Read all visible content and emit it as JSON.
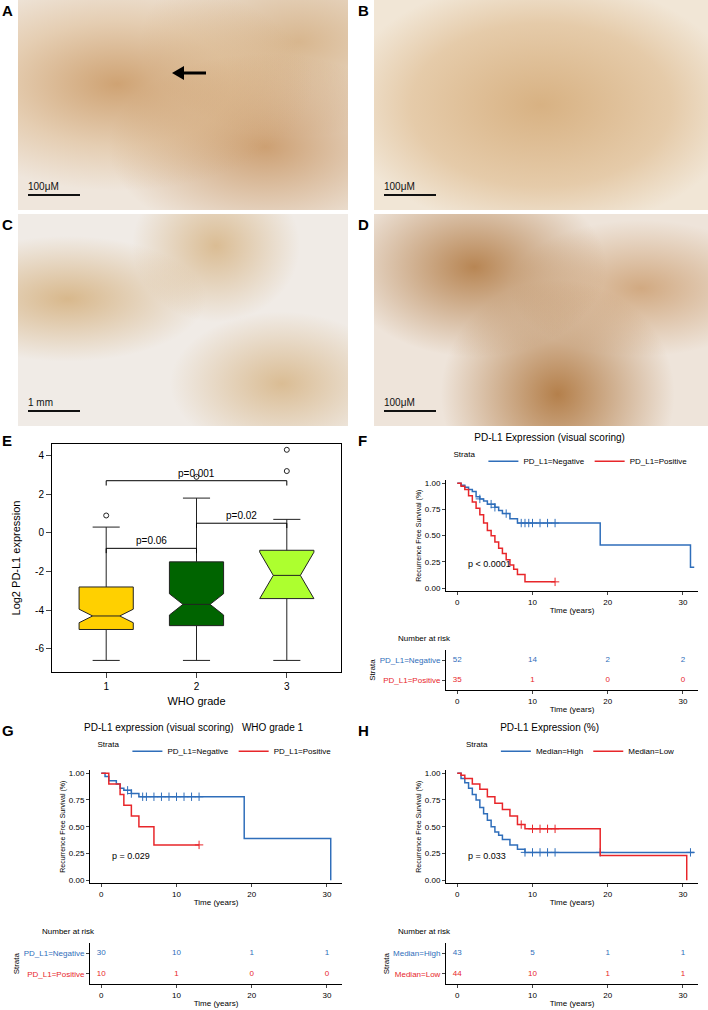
{
  "panels": [
    {
      "label": "A",
      "scale_bar": "100μM"
    },
    {
      "label": "B",
      "scale_bar": "100μM"
    },
    {
      "label": "C",
      "scale_bar": "1 mm"
    },
    {
      "label": "D",
      "scale_bar": "100μM"
    }
  ],
  "chart_data": [
    {
      "panel": "E",
      "type": "box",
      "xlabel": "WHO grade",
      "ylabel": "Log2 PD-L1 expression",
      "categories": [
        "1",
        "2",
        "3"
      ],
      "colors": [
        "#FFD000",
        "#006400",
        "#ADFF2F"
      ],
      "q1": [
        -5.0,
        -4.8,
        -3.4
      ],
      "median": [
        -4.3,
        -3.7,
        -2.2
      ],
      "q3": [
        -2.8,
        -1.5,
        -0.9
      ],
      "whisker_low": [
        -6.6,
        -6.6,
        -6.6
      ],
      "whisker_high": [
        0.3,
        1.8,
        0.7
      ],
      "notch_span": [
        0.35,
        0.55,
        1.2
      ],
      "outliers": [
        [
          0.9
        ],
        [
          2.9
        ],
        [
          3.2,
          4.3
        ]
      ],
      "ylim": [
        -7.2,
        4.6
      ],
      "yticks": [
        -6,
        -4,
        -2,
        0,
        2,
        4
      ],
      "grid": false,
      "comparisons": [
        {
          "from": "1",
          "to": "2",
          "y": -0.8,
          "label": "p=0.06"
        },
        {
          "from": "2",
          "to": "3",
          "y": 0.5,
          "label": "p=0.02"
        },
        {
          "from": "1",
          "to": "3",
          "y": 2.7,
          "label": "p=0.001"
        }
      ]
    },
    {
      "panel": "F",
      "type": "step",
      "title": "PD-L1 Expression (visual scoring)",
      "xlabel": "Time (years)",
      "ylabel": "Recurrence Free Survival (%)",
      "legend_title": "Strata",
      "legend": "top",
      "annotation": "p < 0.0001",
      "table_title": "Number at risk",
      "grid": false,
      "xlim": [
        -1.5,
        32
      ],
      "xticks": [
        0,
        10,
        20,
        30
      ],
      "ylim": [
        -0.03,
        1.03
      ],
      "yticks": [
        {
          "value": 0,
          "label": "0.00"
        },
        {
          "value": 0.25,
          "label": "0.25"
        },
        {
          "value": 0.5,
          "label": "0.50"
        },
        {
          "value": 0.75,
          "label": "0.75"
        },
        {
          "value": 1,
          "label": "1.00"
        }
      ],
      "risk_times": [
        0,
        10,
        20,
        30
      ],
      "series": [
        {
          "name": "PD_L1=Negative",
          "color": "#2F6EBA",
          "time": [
            0,
            0.5,
            1,
            1.5,
            2,
            2.5,
            3,
            3.5,
            4,
            5,
            5.5,
            6,
            7,
            8,
            19,
            31,
            31.5
          ],
          "values": [
            1,
            0.98,
            0.96,
            0.94,
            0.92,
            0.87,
            0.85,
            0.83,
            0.8,
            0.77,
            0.74,
            0.71,
            0.66,
            0.62,
            0.41,
            0.2,
            0.2
          ],
          "censored": [
            3,
            4.5,
            5,
            6.5,
            8.5,
            9,
            9.5,
            10,
            11,
            12,
            13
          ],
          "at_risk": [
            52,
            14,
            2,
            2
          ]
        },
        {
          "name": "PD_L1=Positive",
          "color": "#E8262A",
          "time": [
            0,
            0.5,
            1,
            1.5,
            2,
            2.5,
            3,
            3.5,
            4,
            4.5,
            5,
            5.5,
            6,
            6.5,
            7,
            7.5,
            8,
            9,
            13
          ],
          "values": [
            1,
            0.97,
            0.94,
            0.88,
            0.82,
            0.76,
            0.7,
            0.62,
            0.55,
            0.5,
            0.44,
            0.38,
            0.33,
            0.27,
            0.22,
            0.18,
            0.13,
            0.06,
            0.06
          ],
          "censored": [
            13
          ],
          "at_risk": [
            35,
            1,
            0,
            0
          ]
        }
      ]
    },
    {
      "panel": "G",
      "type": "step",
      "title": "PD-L1 expression (visual scoring)   WHO grade 1",
      "xlabel": "Time (years)",
      "ylabel": "Recurrence Free Survival (%)",
      "legend_title": "Strata",
      "legend": "top",
      "annotation": "p = 0.029",
      "table_title": "Number at risk",
      "grid": false,
      "xlim": [
        -1.5,
        32
      ],
      "xticks": [
        0,
        10,
        20,
        30
      ],
      "ylim": [
        -0.03,
        1.03
      ],
      "yticks": [
        {
          "value": 0,
          "label": "0.00"
        },
        {
          "value": 0.25,
          "label": "0.25"
        },
        {
          "value": 0.5,
          "label": "0.50"
        },
        {
          "value": 0.75,
          "label": "0.75"
        },
        {
          "value": 1,
          "label": "1.00"
        }
      ],
      "risk_times": [
        0,
        10,
        20,
        30
      ],
      "series": [
        {
          "name": "PD_L1=Negative",
          "color": "#2F6EBA",
          "time": [
            0,
            0.5,
            1,
            2,
            2.5,
            3,
            4,
            5,
            19,
            30.5
          ],
          "values": [
            1,
            0.97,
            0.93,
            0.9,
            0.86,
            0.84,
            0.81,
            0.78,
            0.39,
            0
          ],
          "censored": [
            3.5,
            4,
            5.5,
            6,
            7,
            8,
            9,
            10,
            11,
            12,
            13
          ],
          "at_risk": [
            30,
            10,
            1,
            1
          ]
        },
        {
          "name": "PD_L1=Positive",
          "color": "#E8262A",
          "time": [
            0,
            1,
            2.5,
            3,
            4,
            5,
            7,
            13
          ],
          "values": [
            1,
            0.9,
            0.8,
            0.7,
            0.6,
            0.5,
            0.33,
            0.33
          ],
          "censored": [
            13
          ],
          "at_risk": [
            10,
            1,
            0,
            0
          ]
        }
      ]
    },
    {
      "panel": "H",
      "type": "step",
      "title": "PD-L1 Expression (%)",
      "xlabel": "Time (years)",
      "ylabel": "Recurrence Free Survival (%)",
      "legend_title": "Strata",
      "legend": "top",
      "annotation": "p = 0.033",
      "table_title": "Number at risk",
      "grid": false,
      "xlim": [
        -1.5,
        32
      ],
      "xticks": [
        0,
        10,
        20,
        30
      ],
      "ylim": [
        -0.03,
        1.03
      ],
      "yticks": [
        {
          "value": 0,
          "label": "0.00"
        },
        {
          "value": 0.25,
          "label": "0.25"
        },
        {
          "value": 0.5,
          "label": "0.50"
        },
        {
          "value": 0.75,
          "label": "0.75"
        },
        {
          "value": 1,
          "label": "1.00"
        }
      ],
      "risk_times": [
        0,
        10,
        20,
        30
      ],
      "series": [
        {
          "name": "Median=High",
          "color": "#2F6EBA",
          "time": [
            0,
            0.5,
            1,
            1.5,
            2,
            2.5,
            3,
            3.5,
            4,
            4.5,
            5,
            5.5,
            6,
            7,
            8,
            9,
            31.5
          ],
          "values": [
            1,
            0.95,
            0.91,
            0.86,
            0.8,
            0.75,
            0.68,
            0.62,
            0.56,
            0.5,
            0.45,
            0.42,
            0.38,
            0.33,
            0.29,
            0.26,
            0.26
          ],
          "censored": [
            9,
            10,
            11,
            12,
            13,
            19,
            31
          ],
          "at_risk": [
            43,
            5,
            1,
            1
          ]
        },
        {
          "name": "Median=Low",
          "color": "#E8262A",
          "time": [
            0,
            0.5,
            1,
            2,
            3,
            4,
            5,
            6,
            7,
            8,
            9,
            19,
            30.5
          ],
          "values": [
            1,
            0.98,
            0.95,
            0.9,
            0.85,
            0.78,
            0.72,
            0.66,
            0.6,
            0.52,
            0.48,
            0.23,
            0
          ],
          "censored": [
            8.5,
            10,
            11,
            12,
            13
          ],
          "at_risk": [
            44,
            10,
            1,
            1
          ]
        }
      ]
    }
  ]
}
